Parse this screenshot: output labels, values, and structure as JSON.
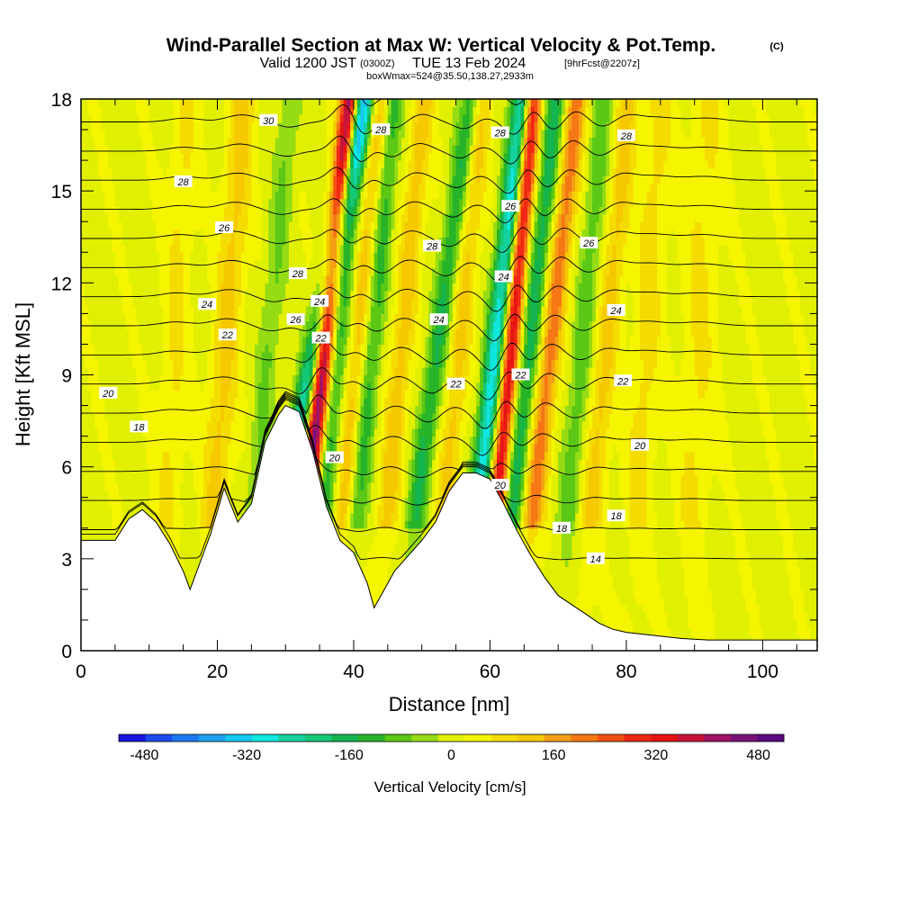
{
  "title": {
    "main": "Wind-Parallel Section at Max W: Vertical Velocity & Pot.Temp.",
    "copyright": "(C)",
    "valid_prefix": "Valid 1200 JST",
    "valid_utc": "(0300Z)",
    "valid_date": "TUE 13 Feb 2024",
    "forecast": "[9hrFcst@2207z]",
    "box_info": "boxWmax=524@35.50,138.27,2933m"
  },
  "chart_data": {
    "type": "heatmap",
    "xlabel": "Distance [nm]",
    "ylabel": "Height [Kft MSL]",
    "xlim": [
      0,
      108
    ],
    "ylim": [
      0,
      18
    ],
    "x_ticks": [
      0,
      20,
      40,
      60,
      80,
      100
    ],
    "y_ticks": [
      0,
      3,
      6,
      9,
      12,
      15,
      18
    ],
    "colorbar": {
      "label": "Vertical Velocity [cm/s]",
      "tick_values": [
        -480,
        -320,
        -160,
        0,
        160,
        320,
        480
      ],
      "range": [
        -520,
        520
      ],
      "colors": [
        "#1a14e0",
        "#1e4bf0",
        "#1e78f0",
        "#1ea0f0",
        "#14c8f0",
        "#10e6e0",
        "#14d2a0",
        "#14c878",
        "#14b450",
        "#28b428",
        "#5ac814",
        "#96dc14",
        "#e1f000",
        "#f5f500",
        "#f5dc00",
        "#f5c800",
        "#f5a014",
        "#f57814",
        "#f55014",
        "#f02814",
        "#e61414",
        "#c8143c",
        "#a01464",
        "#781478",
        "#5a0a82"
      ]
    },
    "terrain": {
      "description_units": "distance nm, height kft",
      "x": [
        0,
        5,
        7,
        9,
        11,
        13,
        15,
        16,
        17,
        19,
        21,
        23,
        25,
        27,
        29,
        30,
        32,
        34,
        36,
        38,
        40,
        42,
        43,
        44,
        46,
        48,
        50,
        52,
        54,
        56,
        58,
        60,
        62,
        64,
        66,
        68,
        70,
        72,
        74,
        76,
        78,
        80,
        84,
        88,
        92,
        96,
        100,
        104,
        108
      ],
      "height": [
        3.6,
        3.6,
        4.3,
        4.6,
        4.2,
        3.5,
        2.6,
        2.0,
        2.6,
        3.8,
        5.3,
        4.2,
        4.8,
        6.8,
        7.7,
        8.0,
        7.8,
        6.5,
        4.7,
        3.6,
        3.2,
        2.2,
        1.4,
        1.8,
        2.6,
        3.1,
        3.6,
        4.2,
        5.2,
        5.8,
        5.8,
        5.6,
        4.8,
        3.9,
        3.1,
        2.4,
        1.8,
        1.5,
        1.2,
        0.9,
        0.7,
        0.6,
        0.5,
        0.4,
        0.35,
        0.35,
        0.35,
        0.35,
        0.35
      ]
    },
    "vertical_velocity_bands": [
      {
        "center_base": 31,
        "slope": 0.22,
        "width": 1.6,
        "peak": -300
      },
      {
        "center_base": 33.8,
        "slope": 0.12,
        "width": 1.4,
        "peak": 520
      },
      {
        "center_base": 36,
        "slope": 0.1,
        "width": 1.6,
        "peak": -150
      },
      {
        "center_base": 39,
        "slope": 0.1,
        "width": 1.4,
        "peak": 120
      },
      {
        "center_base": 41.2,
        "slope": 0.1,
        "width": 1.4,
        "peak": -130
      },
      {
        "center_base": 45.5,
        "slope": 0.1,
        "width": 1.6,
        "peak": 120
      },
      {
        "center_base": 50,
        "slope": 0.15,
        "width": 1.5,
        "peak": -160
      },
      {
        "center_base": 54,
        "slope": 0.1,
        "width": 1.6,
        "peak": 110
      },
      {
        "center_base": 59,
        "slope": 0.12,
        "width": 1.5,
        "peak": -320
      },
      {
        "center_base": 61.5,
        "slope": 0.1,
        "width": 1.3,
        "peak": 360
      },
      {
        "center_base": 64,
        "slope": 0.12,
        "width": 1.5,
        "peak": -180
      },
      {
        "center_base": 67,
        "slope": 0.12,
        "width": 1.6,
        "peak": 200
      },
      {
        "center_base": 72,
        "slope": 0.1,
        "width": 1.6,
        "peak": -100
      },
      {
        "center_base": 75.5,
        "slope": 0.1,
        "width": 1.7,
        "peak": 110
      },
      {
        "center_base": 82,
        "slope": 0.06,
        "width": 2.2,
        "peak": 70
      },
      {
        "center_base": 90,
        "slope": 0.04,
        "width": 2.5,
        "peak": 60
      },
      {
        "center_base": 20,
        "slope": 0.08,
        "width": 2.0,
        "peak": 110
      },
      {
        "center_base": 13,
        "slope": 0.05,
        "width": 2.0,
        "peak": 60
      },
      {
        "center_base": 26,
        "slope": 0.1,
        "width": 1.5,
        "peak": -80
      }
    ],
    "potential_temperature_contours": {
      "levels_degC": [
        14,
        16,
        18,
        20,
        22,
        24,
        26,
        28,
        30
      ],
      "labels": [
        {
          "text": "30",
          "x": 27.5,
          "y": 17.3
        },
        {
          "text": "28",
          "x": 15,
          "y": 15.3
        },
        {
          "text": "28",
          "x": 44,
          "y": 17.0
        },
        {
          "text": "28",
          "x": 61.5,
          "y": 16.9
        },
        {
          "text": "28",
          "x": 80,
          "y": 16.8
        },
        {
          "text": "28",
          "x": 31.8,
          "y": 12.3
        },
        {
          "text": "28",
          "x": 51.5,
          "y": 13.2
        },
        {
          "text": "26",
          "x": 21,
          "y": 13.8
        },
        {
          "text": "26",
          "x": 63,
          "y": 14.5
        },
        {
          "text": "26",
          "x": 74.5,
          "y": 13.3
        },
        {
          "text": "26",
          "x": 31.5,
          "y": 10.8
        },
        {
          "text": "24",
          "x": 18.5,
          "y": 11.3
        },
        {
          "text": "24",
          "x": 35,
          "y": 11.4
        },
        {
          "text": "24",
          "x": 52.5,
          "y": 10.8
        },
        {
          "text": "24",
          "x": 62,
          "y": 12.2
        },
        {
          "text": "24",
          "x": 78.5,
          "y": 11.1
        },
        {
          "text": "22",
          "x": 21.5,
          "y": 10.3
        },
        {
          "text": "22",
          "x": 35.2,
          "y": 10.2
        },
        {
          "text": "22",
          "x": 55,
          "y": 8.7
        },
        {
          "text": "22",
          "x": 64.5,
          "y": 9.0
        },
        {
          "text": "22",
          "x": 79.5,
          "y": 8.8
        },
        {
          "text": "20",
          "x": 4,
          "y": 8.4
        },
        {
          "text": "20",
          "x": 37.2,
          "y": 6.3
        },
        {
          "text": "20",
          "x": 61.5,
          "y": 5.4
        },
        {
          "text": "20",
          "x": 82,
          "y": 6.7
        },
        {
          "text": "18",
          "x": 8.5,
          "y": 7.3
        },
        {
          "text": "18",
          "x": 70.5,
          "y": 4.0
        },
        {
          "text": "18",
          "x": 78.5,
          "y": 4.4
        },
        {
          "text": "14",
          "x": 75.5,
          "y": 3.0
        }
      ]
    }
  }
}
